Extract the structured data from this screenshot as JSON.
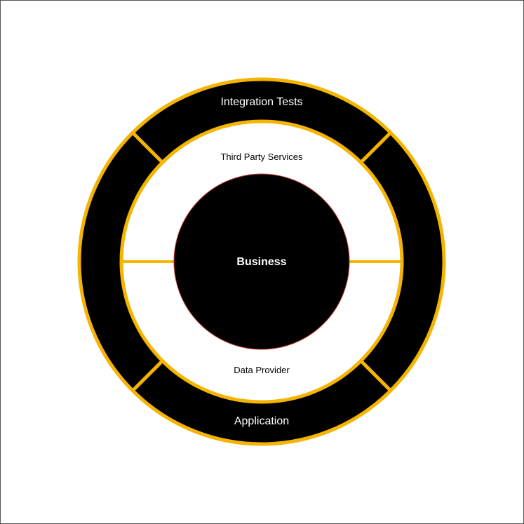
{
  "diagram": {
    "outer_ring": {
      "top_label": "Integration Tests",
      "bottom_label": "Application"
    },
    "middle_ring": {
      "top_label": "Third Party Services",
      "bottom_label": "Data Provider"
    },
    "core": {
      "label": "Business"
    }
  },
  "colors": {
    "ring_fill": "#000000",
    "accent": "#f5b400",
    "middle_fill": "#ffffff",
    "core_fill": "#000000",
    "core_stroke": "#c0392b",
    "outer_text": "#ffffff",
    "middle_text": "#000000",
    "core_text": "#ffffff"
  }
}
